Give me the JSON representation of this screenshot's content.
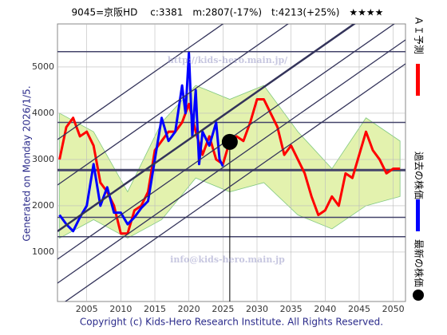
{
  "chart_data": {
    "type": "line",
    "title": "9045=京阪HD　 c:3381　m:2807(-17%)　t:4213(+25%)　★★★★",
    "side_label": "Generated on Monday 2026/1/5.",
    "footer": "Copyright (c) Kids-Hero Research Institute. All Rights Reserved.",
    "watermarks": [
      "http://kids-hero.main.jp/",
      "info@kids-hero.main.jp"
    ],
    "xlim": [
      2000.7,
      2051.8
    ],
    "ylim": [
      -70,
      5930
    ],
    "xticks": [
      2005,
      2010,
      2015,
      2020,
      2025,
      2030,
      2035,
      2040,
      2045,
      2050
    ],
    "yticks": [
      1000,
      2000,
      3000,
      4000,
      5000
    ],
    "grid": true,
    "hlines": [
      5330,
      3800,
      2770,
      1750,
      1330
    ],
    "band": {
      "color": "#dff0a0",
      "x": [
        2001,
        2006,
        2011,
        2016,
        2021,
        2026,
        2031,
        2036,
        2041,
        2046,
        2051
      ],
      "high": [
        4000,
        3600,
        2300,
        3800,
        4600,
        4300,
        4600,
        3600,
        2800,
        3900,
        3400
      ],
      "low": [
        1300,
        1700,
        1300,
        1700,
        2600,
        2300,
        2500,
        1800,
        1500,
        2000,
        2200
      ]
    },
    "series": [
      {
        "name": "ＡＩ予測",
        "color": "#ff0000",
        "x": [
          2001,
          2002,
          2003,
          2004,
          2005,
          2006,
          2007,
          2008,
          2009,
          2010,
          2011,
          2012,
          2013,
          2014,
          2015,
          2016,
          2017,
          2018,
          2019,
          2020,
          2021,
          2022,
          2023,
          2024,
          2025,
          2026,
          2027,
          2028,
          2029,
          2030,
          2031,
          2032,
          2033,
          2034,
          2035,
          2036,
          2037,
          2038,
          2039,
          2040,
          2041,
          2042,
          2043,
          2044,
          2045,
          2046,
          2047,
          2048,
          2049,
          2050,
          2051
        ],
        "values": [
          3000,
          3700,
          3900,
          3500,
          3600,
          3300,
          2500,
          2300,
          2000,
          1400,
          1400,
          1900,
          2000,
          2300,
          3200,
          3400,
          3600,
          3600,
          3800,
          4200,
          3600,
          3100,
          3500,
          3000,
          2900,
          3400,
          3500,
          3400,
          3800,
          4300,
          4300,
          4000,
          3700,
          3100,
          3300,
          3000,
          2700,
          2200,
          1800,
          1900,
          2200,
          2000,
          2700,
          2600,
          3100,
          3600,
          3200,
          3000,
          2700,
          2800,
          2800
        ]
      },
      {
        "name": "過去の株価",
        "color": "#0000ff",
        "x": [
          2001,
          2002,
          2003,
          2004,
          2005,
          2006,
          2007,
          2008,
          2009,
          2010,
          2011,
          2012,
          2013,
          2014,
          2015,
          2016,
          2017,
          2018,
          2019,
          2019.5,
          2020,
          2020.5,
          2021,
          2021.5,
          2022,
          2023,
          2024,
          2024.5,
          2025
        ],
        "values": [
          1800,
          1600,
          1450,
          1750,
          2000,
          2900,
          2000,
          2400,
          1850,
          1850,
          1600,
          1750,
          1950,
          2100,
          3000,
          3900,
          3400,
          3600,
          4600,
          4000,
          5300,
          3500,
          4500,
          2900,
          3600,
          3300,
          3800,
          3000,
          2850
        ]
      },
      {
        "name": "最新の株価",
        "color": "#000000",
        "x": [
          2026
        ],
        "values": [
          3381
        ]
      }
    ]
  }
}
